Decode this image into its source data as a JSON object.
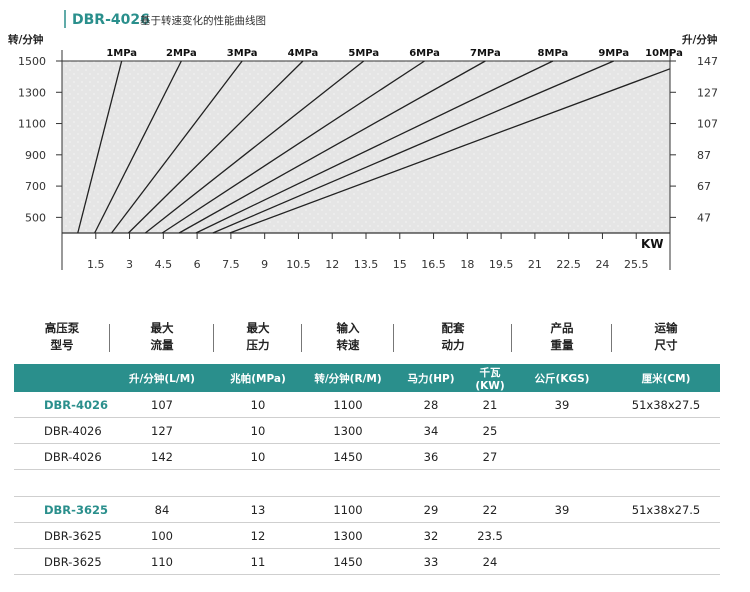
{
  "chart_title": {
    "code": "DBR-4026",
    "subtitle": "基于转速变化的性能曲线图"
  },
  "chart_data": {
    "type": "line",
    "title": "DBR-4026 基于转速变化的性能曲线图",
    "y_left_label": "转/分钟",
    "y_right_label": "升/分钟",
    "x_label": "KW",
    "x_ticks": [
      "1.5",
      "3",
      "4.5",
      "6",
      "7.5",
      "9",
      "10.5",
      "12",
      "13.5",
      "15",
      "16.5",
      "18",
      "19.5",
      "21",
      "22.5",
      "24",
      "25.5"
    ],
    "x_range": [
      0,
      27
    ],
    "y_left_ticks": [
      500,
      700,
      900,
      1100,
      1300,
      1500
    ],
    "y_right_ticks": [
      "47",
      "67",
      "87",
      "107",
      "127",
      "147"
    ],
    "y_range": [
      400,
      1500
    ],
    "series": [
      {
        "name": "1MPa",
        "points": [
          [
            0.7,
            400
          ],
          [
            2.65,
            1500
          ]
        ]
      },
      {
        "name": "2MPa",
        "points": [
          [
            1.45,
            400
          ],
          [
            5.3,
            1500
          ]
        ]
      },
      {
        "name": "3MPa",
        "points": [
          [
            2.2,
            400
          ],
          [
            8.0,
            1500
          ]
        ]
      },
      {
        "name": "4MPa",
        "points": [
          [
            2.95,
            400
          ],
          [
            10.7,
            1500
          ]
        ]
      },
      {
        "name": "5MPa",
        "points": [
          [
            3.7,
            400
          ],
          [
            13.4,
            1500
          ]
        ]
      },
      {
        "name": "6MPa",
        "points": [
          [
            4.45,
            400
          ],
          [
            16.1,
            1500
          ]
        ]
      },
      {
        "name": "7MPa",
        "points": [
          [
            5.2,
            400
          ],
          [
            18.8,
            1500
          ]
        ]
      },
      {
        "name": "8MPa",
        "points": [
          [
            5.95,
            400
          ],
          [
            21.8,
            1500
          ]
        ]
      },
      {
        "name": "9MPa",
        "points": [
          [
            6.7,
            400
          ],
          [
            24.5,
            1500
          ]
        ]
      },
      {
        "name": "10MPa",
        "points": [
          [
            7.45,
            400
          ],
          [
            27.0,
            1450
          ]
        ]
      }
    ]
  },
  "table": {
    "headers": [
      {
        "line1": "高压泵",
        "line2": "型号"
      },
      {
        "line1": "最大",
        "line2": "流量"
      },
      {
        "line1": "最大",
        "line2": "压力"
      },
      {
        "line1": "输入",
        "line2": "转速"
      },
      {
        "line1": "配套",
        "line2": "动力"
      },
      {
        "line1": "产品",
        "line2": "重量"
      },
      {
        "line1": "运输",
        "line2": "尺寸"
      }
    ],
    "units": [
      "升/分钟(L/M)",
      "兆帕(MPa)",
      "转/分钟(R/M)",
      "马力(HP)",
      "千瓦(KW)",
      "公斤(KGS)",
      "厘米(CM)"
    ],
    "groups": [
      {
        "rows": [
          {
            "model": "DBR-4026",
            "flow": "107",
            "pressure": "10",
            "rpm": "1100",
            "hp": "28",
            "kw": "21",
            "weight": "39",
            "size": "51x38x27.5"
          },
          {
            "model": "DBR-4026",
            "flow": "127",
            "pressure": "10",
            "rpm": "1300",
            "hp": "34",
            "kw": "25",
            "weight": "",
            "size": ""
          },
          {
            "model": "DBR-4026",
            "flow": "142",
            "pressure": "10",
            "rpm": "1450",
            "hp": "36",
            "kw": "27",
            "weight": "",
            "size": ""
          }
        ]
      },
      {
        "rows": [
          {
            "model": "DBR-3625",
            "flow": "84",
            "pressure": "13",
            "rpm": "1100",
            "hp": "29",
            "kw": "22",
            "weight": "39",
            "size": "51x38x27.5"
          },
          {
            "model": "DBR-3625",
            "flow": "100",
            "pressure": "12",
            "rpm": "1300",
            "hp": "32",
            "kw": "23.5",
            "weight": "",
            "size": ""
          },
          {
            "model": "DBR-3625",
            "flow": "110",
            "pressure": "11",
            "rpm": "1450",
            "hp": "33",
            "kw": "24",
            "weight": "",
            "size": ""
          }
        ]
      }
    ]
  },
  "colors": {
    "accent": "#2a8f8c",
    "plot_bg": "#e5e5e5",
    "line": "#222222"
  }
}
